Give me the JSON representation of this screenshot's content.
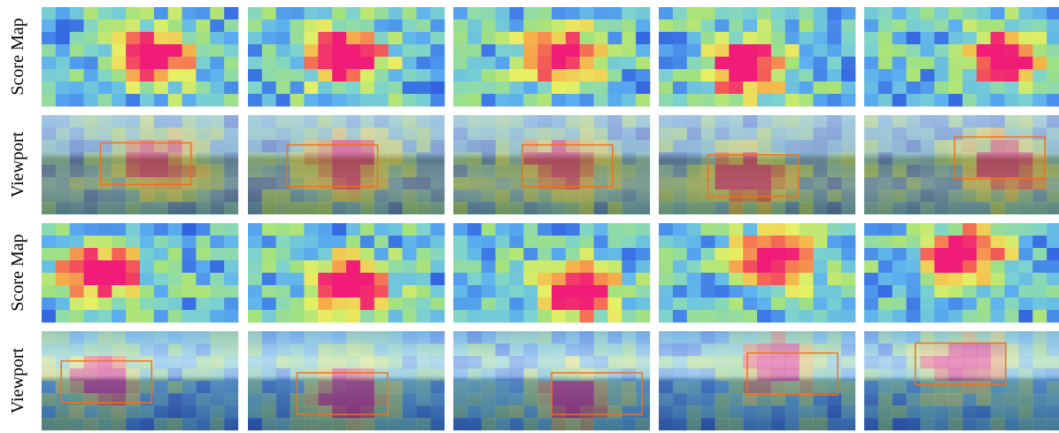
{
  "rows": [
    {
      "label": "Score Map"
    },
    {
      "label": "Viewport"
    },
    {
      "label": "Score Map"
    },
    {
      "label": "Viewport"
    }
  ]
}
